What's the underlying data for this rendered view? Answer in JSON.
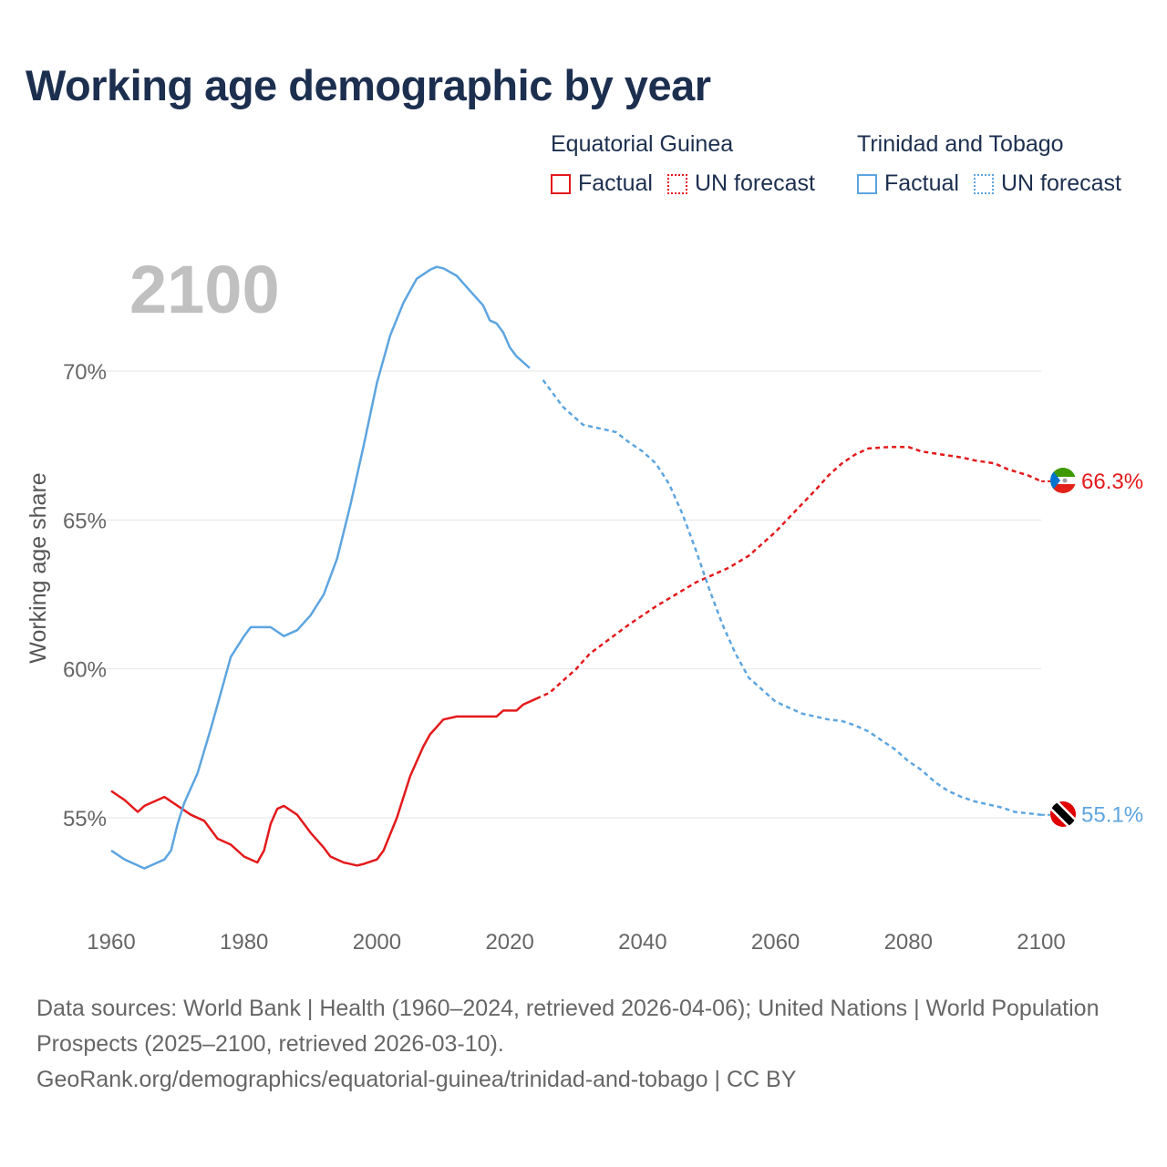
{
  "title": "Working age demographic by year",
  "legend": [
    {
      "group": "Equatorial Guinea",
      "factual_label": "Factual",
      "forecast_label": "UN forecast",
      "color": "#e31a1c"
    },
    {
      "group": "Trinidad and Tobago",
      "factual_label": "Factual",
      "forecast_label": "UN forecast",
      "color": "#5da5e0"
    }
  ],
  "chart_data": {
    "type": "line",
    "year_label": "2100",
    "ylabel": "Working age share",
    "xlim": [
      1960,
      2100
    ],
    "ylim": [
      52,
      74
    ],
    "x_ticks": [
      1960,
      1980,
      2000,
      2020,
      2040,
      2060,
      2080,
      2100
    ],
    "y_ticks": [
      55,
      60,
      65,
      70
    ],
    "y_tick_labels": [
      "55%",
      "60%",
      "65%",
      "70%"
    ],
    "forecast_start": 2024,
    "series": [
      {
        "name": "Equatorial Guinea",
        "color": "#e31a1c",
        "end_label": "66.3%",
        "flag": "equatorial-guinea-flag-icon",
        "points": [
          [
            1960,
            55.9
          ],
          [
            1962,
            55.6
          ],
          [
            1964,
            55.2
          ],
          [
            1965,
            55.4
          ],
          [
            1968,
            55.7
          ],
          [
            1970,
            55.4
          ],
          [
            1972,
            55.1
          ],
          [
            1974,
            54.9
          ],
          [
            1976,
            54.3
          ],
          [
            1978,
            54.1
          ],
          [
            1980,
            53.7
          ],
          [
            1982,
            53.5
          ],
          [
            1983,
            53.9
          ],
          [
            1984,
            54.8
          ],
          [
            1985,
            55.3
          ],
          [
            1986,
            55.4
          ],
          [
            1988,
            55.1
          ],
          [
            1990,
            54.5
          ],
          [
            1992,
            54.0
          ],
          [
            1993,
            53.7
          ],
          [
            1995,
            53.5
          ],
          [
            1997,
            53.4
          ],
          [
            1998,
            53.45
          ],
          [
            2000,
            53.6
          ],
          [
            2001,
            53.9
          ],
          [
            2003,
            55.0
          ],
          [
            2005,
            56.4
          ],
          [
            2007,
            57.4
          ],
          [
            2008,
            57.8
          ],
          [
            2010,
            58.3
          ],
          [
            2012,
            58.4
          ],
          [
            2015,
            58.4
          ],
          [
            2018,
            58.4
          ],
          [
            2019,
            58.6
          ],
          [
            2021,
            58.6
          ],
          [
            2022,
            58.8
          ],
          [
            2024,
            59.0
          ],
          [
            2026,
            59.2
          ],
          [
            2028,
            59.6
          ],
          [
            2030,
            60.0
          ],
          [
            2032,
            60.5
          ],
          [
            2035,
            61.0
          ],
          [
            2038,
            61.5
          ],
          [
            2040,
            61.8
          ],
          [
            2042,
            62.1
          ],
          [
            2045,
            62.5
          ],
          [
            2048,
            62.9
          ],
          [
            2050,
            63.1
          ],
          [
            2053,
            63.4
          ],
          [
            2056,
            63.8
          ],
          [
            2058,
            64.2
          ],
          [
            2060,
            64.6
          ],
          [
            2063,
            65.3
          ],
          [
            2066,
            66.0
          ],
          [
            2068,
            66.5
          ],
          [
            2070,
            66.9
          ],
          [
            2072,
            67.2
          ],
          [
            2074,
            67.4
          ],
          [
            2077,
            67.45
          ],
          [
            2080,
            67.45
          ],
          [
            2082,
            67.3
          ],
          [
            2085,
            67.2
          ],
          [
            2088,
            67.1
          ],
          [
            2090,
            67.0
          ],
          [
            2093,
            66.9
          ],
          [
            2095,
            66.7
          ],
          [
            2098,
            66.5
          ],
          [
            2100,
            66.3
          ]
        ]
      },
      {
        "name": "Trinidad and Tobago",
        "color": "#5da5e0",
        "end_label": "55.1%",
        "flag": "trinidad-and-tobago-flag-icon",
        "points": [
          [
            1960,
            53.9
          ],
          [
            1962,
            53.6
          ],
          [
            1965,
            53.3
          ],
          [
            1968,
            53.6
          ],
          [
            1969,
            53.9
          ],
          [
            1970,
            54.8
          ],
          [
            1971,
            55.5
          ],
          [
            1973,
            56.5
          ],
          [
            1975,
            58.0
          ],
          [
            1977,
            59.6
          ],
          [
            1978,
            60.4
          ],
          [
            1980,
            61.1
          ],
          [
            1981,
            61.4
          ],
          [
            1984,
            61.4
          ],
          [
            1986,
            61.1
          ],
          [
            1988,
            61.3
          ],
          [
            1990,
            61.8
          ],
          [
            1992,
            62.5
          ],
          [
            1994,
            63.7
          ],
          [
            1996,
            65.5
          ],
          [
            1998,
            67.5
          ],
          [
            2000,
            69.6
          ],
          [
            2002,
            71.2
          ],
          [
            2004,
            72.3
          ],
          [
            2006,
            73.1
          ],
          [
            2008,
            73.4
          ],
          [
            2009,
            73.5
          ],
          [
            2010,
            73.45
          ],
          [
            2012,
            73.2
          ],
          [
            2014,
            72.7
          ],
          [
            2016,
            72.2
          ],
          [
            2017,
            71.7
          ],
          [
            2018,
            71.6
          ],
          [
            2019,
            71.3
          ],
          [
            2020,
            70.8
          ],
          [
            2021,
            70.5
          ],
          [
            2023,
            70.1
          ],
          [
            2025,
            69.7
          ],
          [
            2027,
            69.1
          ],
          [
            2028,
            68.8
          ],
          [
            2030,
            68.4
          ],
          [
            2031,
            68.2
          ],
          [
            2033,
            68.1
          ],
          [
            2035,
            68.0
          ],
          [
            2036,
            67.95
          ],
          [
            2038,
            67.6
          ],
          [
            2040,
            67.3
          ],
          [
            2042,
            66.9
          ],
          [
            2044,
            66.2
          ],
          [
            2046,
            65.2
          ],
          [
            2048,
            64.0
          ],
          [
            2050,
            62.7
          ],
          [
            2052,
            61.5
          ],
          [
            2054,
            60.5
          ],
          [
            2056,
            59.7
          ],
          [
            2058,
            59.3
          ],
          [
            2060,
            58.9
          ],
          [
            2062,
            58.7
          ],
          [
            2064,
            58.5
          ],
          [
            2066,
            58.4
          ],
          [
            2068,
            58.3
          ],
          [
            2070,
            58.25
          ],
          [
            2072,
            58.1
          ],
          [
            2074,
            57.9
          ],
          [
            2076,
            57.6
          ],
          [
            2078,
            57.3
          ],
          [
            2080,
            56.9
          ],
          [
            2082,
            56.6
          ],
          [
            2084,
            56.2
          ],
          [
            2086,
            55.9
          ],
          [
            2088,
            55.7
          ],
          [
            2090,
            55.55
          ],
          [
            2092,
            55.45
          ],
          [
            2094,
            55.35
          ],
          [
            2096,
            55.2
          ],
          [
            2098,
            55.15
          ],
          [
            2100,
            55.1
          ]
        ]
      }
    ]
  },
  "sources": {
    "text": "Data sources: World Bank | Health (1960–2024, retrieved 2026-04-06); United Nations | World Population Prospects (2025–2100, retrieved 2026-03-10).",
    "link": "GeoRank.org/demographics/equatorial-guinea/trinidad-and-tobago | CC BY"
  }
}
